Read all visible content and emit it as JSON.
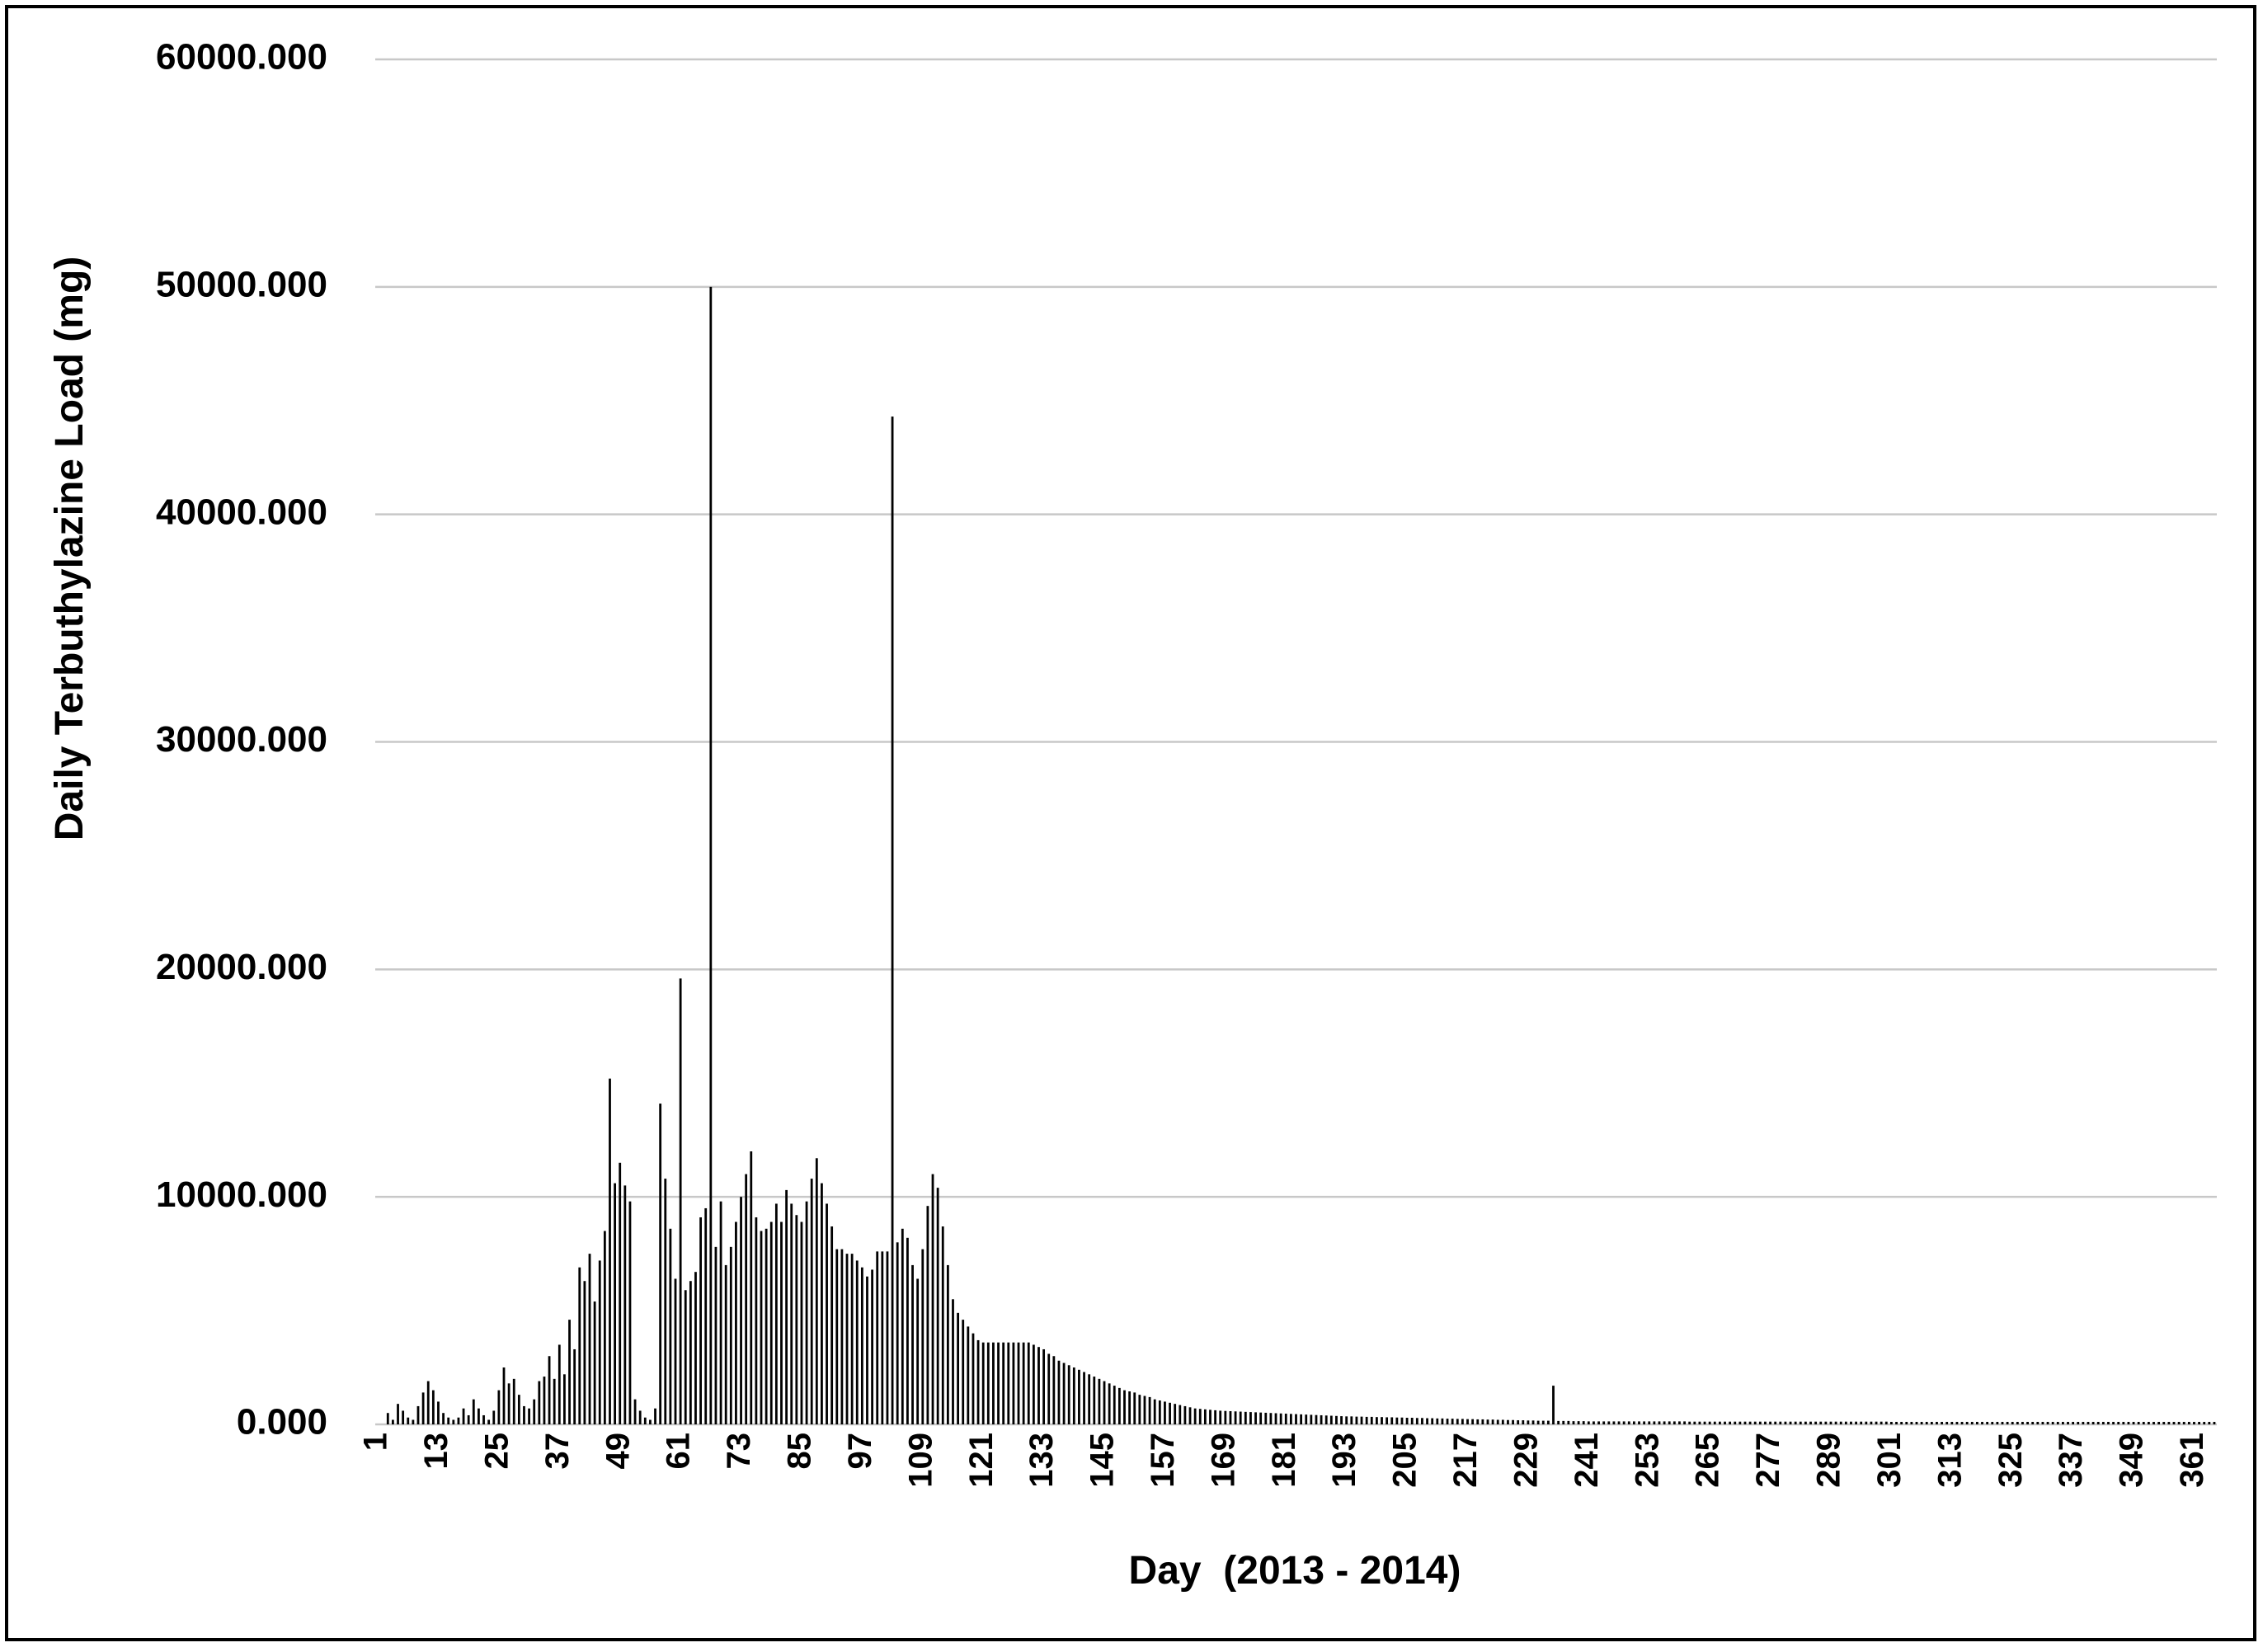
{
  "chart_data": {
    "type": "bar",
    "x_label": "Day  (2013 - 2014)",
    "y_label": "Daily Terbuthylazine Load (mg)",
    "color": "#000000",
    "grid": true,
    "ylim": [
      0,
      60000
    ],
    "yticks": [
      {
        "value": 0,
        "label": "0.000"
      },
      {
        "value": 10000,
        "label": "10000.000"
      },
      {
        "value": 20000,
        "label": "20000.000"
      },
      {
        "value": 30000,
        "label": "30000.000"
      },
      {
        "value": 40000,
        "label": "40000.000"
      },
      {
        "value": 50000,
        "label": "50000.000"
      },
      {
        "value": 60000,
        "label": "60000.000"
      }
    ],
    "categories": [
      1,
      null,
      null,
      null,
      null,
      null,
      null,
      null,
      null,
      null,
      null,
      null,
      13,
      null,
      null,
      null,
      null,
      null,
      null,
      null,
      null,
      null,
      null,
      null,
      25,
      null,
      null,
      null,
      null,
      null,
      null,
      null,
      null,
      null,
      null,
      null,
      37,
      null,
      null,
      null,
      null,
      null,
      null,
      null,
      null,
      null,
      null,
      null,
      49,
      null,
      null,
      null,
      null,
      null,
      null,
      null,
      null,
      null,
      null,
      null,
      61,
      null,
      null,
      null,
      null,
      null,
      null,
      null,
      null,
      null,
      null,
      null,
      73,
      null,
      null,
      null,
      null,
      null,
      null,
      null,
      null,
      null,
      null,
      null,
      85,
      null,
      null,
      null,
      null,
      null,
      null,
      null,
      null,
      null,
      null,
      null,
      97,
      null,
      null,
      null,
      null,
      null,
      null,
      null,
      null,
      null,
      null,
      null,
      109,
      null,
      null,
      null,
      null,
      null,
      null,
      null,
      null,
      null,
      null,
      null,
      121,
      null,
      null,
      null,
      null,
      null,
      null,
      null,
      null,
      null,
      null,
      null,
      133,
      null,
      null,
      null,
      null,
      null,
      null,
      null,
      null,
      null,
      null,
      null,
      145,
      null,
      null,
      null,
      null,
      null,
      null,
      null,
      null,
      null,
      null,
      null,
      157,
      null,
      null,
      null,
      null,
      null,
      null,
      null,
      null,
      null,
      null,
      null,
      169,
      null,
      null,
      null,
      null,
      null,
      null,
      null,
      null,
      null,
      null,
      null,
      181,
      null,
      null,
      null,
      null,
      null,
      null,
      null,
      null,
      null,
      null,
      null,
      193,
      null,
      null,
      null,
      null,
      null,
      null,
      null,
      null,
      null,
      null,
      null,
      205,
      null,
      null,
      null,
      null,
      null,
      null,
      null,
      null,
      null,
      null,
      null,
      217,
      null,
      null,
      null,
      null,
      null,
      null,
      null,
      null,
      null,
      null,
      null,
      229,
      null,
      null,
      null,
      null,
      null,
      null,
      null,
      null,
      null,
      null,
      null,
      241,
      null,
      null,
      null,
      null,
      null,
      null,
      null,
      null,
      null,
      null,
      null,
      253,
      null,
      null,
      null,
      null,
      null,
      null,
      null,
      null,
      null,
      null,
      null,
      265,
      null,
      null,
      null,
      null,
      null,
      null,
      null,
      null,
      null,
      null,
      null,
      277,
      null,
      null,
      null,
      null,
      null,
      null,
      null,
      null,
      null,
      null,
      null,
      289,
      null,
      null,
      null,
      null,
      null,
      null,
      null,
      null,
      null,
      null,
      null,
      301,
      null,
      null,
      null,
      null,
      null,
      null,
      null,
      null,
      null,
      null,
      null,
      313,
      null,
      null,
      null,
      null,
      null,
      null,
      null,
      null,
      null,
      null,
      null,
      325,
      null,
      null,
      null,
      null,
      null,
      null,
      null,
      null,
      null,
      null,
      null,
      337,
      null,
      null,
      null,
      null,
      null,
      null,
      null,
      null,
      null,
      null,
      null,
      349,
      null,
      null,
      null,
      null,
      null,
      null,
      null,
      null,
      null,
      null,
      null,
      361,
      null,
      null,
      null,
      null
    ],
    "values": [
      0,
      0,
      500,
      200,
      900,
      600,
      300,
      200,
      800,
      1400,
      1900,
      1500,
      1000,
      500,
      300,
      200,
      300,
      700,
      400,
      1100,
      700,
      400,
      200,
      600,
      1500,
      2500,
      1800,
      2000,
      1300,
      800,
      700,
      1100,
      1900,
      2100,
      3000,
      2000,
      3500,
      2200,
      4600,
      3300,
      6900,
      6300,
      7500,
      5400,
      7200,
      8500,
      15200,
      10600,
      11500,
      10500,
      9800,
      1100,
      600,
      300,
      200,
      700,
      14100,
      10800,
      8600,
      6400,
      19600,
      5900,
      6300,
      6700,
      9100,
      9500,
      50000,
      7800,
      9800,
      7000,
      7800,
      8900,
      10000,
      11000,
      12000,
      9100,
      8500,
      8600,
      8900,
      9700,
      8900,
      10300,
      9700,
      9200,
      8900,
      9800,
      10800,
      11700,
      10600,
      9700,
      8700,
      7700,
      7700,
      7500,
      7500,
      7200,
      6900,
      6500,
      6800,
      7600,
      7600,
      7600,
      44300,
      8000,
      8600,
      8200,
      7000,
      6400,
      7700,
      9600,
      11000,
      10400,
      8700,
      7000,
      5500,
      4900,
      4600,
      4300,
      4000,
      3700,
      3600,
      3600,
      3600,
      3600,
      3600,
      3600,
      3600,
      3600,
      3600,
      3600,
      3500,
      3400,
      3300,
      3100,
      3000,
      2800,
      2700,
      2600,
      2500,
      2400,
      2300,
      2200,
      2100,
      2000,
      1900,
      1800,
      1700,
      1600,
      1500,
      1450,
      1400,
      1300,
      1250,
      1200,
      1100,
      1050,
      1000,
      950,
      900,
      850,
      800,
      750,
      700,
      680,
      660,
      640,
      620,
      600,
      590,
      580,
      570,
      560,
      550,
      540,
      530,
      520,
      510,
      500,
      490,
      480,
      470,
      460,
      450,
      440,
      430,
      420,
      410,
      400,
      390,
      380,
      370,
      360,
      350,
      350,
      340,
      340,
      330,
      330,
      320,
      320,
      310,
      310,
      300,
      300,
      290,
      290,
      280,
      280,
      270,
      270,
      260,
      260,
      250,
      250,
      240,
      240,
      230,
      230,
      220,
      220,
      210,
      210,
      200,
      200,
      190,
      190,
      180,
      180,
      170,
      170,
      160,
      160,
      160,
      1700,
      150,
      150,
      150,
      140,
      140,
      140,
      130,
      130,
      130,
      130,
      130,
      130,
      130,
      130,
      130,
      130,
      130,
      130,
      130,
      130,
      130,
      130,
      130,
      130,
      130,
      130,
      120,
      120,
      120,
      120,
      120,
      120,
      120,
      120,
      120,
      120,
      120,
      120,
      120,
      120,
      120,
      120,
      120,
      120,
      120,
      120,
      120,
      120,
      120,
      120,
      120,
      120,
      120,
      120,
      120,
      120,
      120,
      120,
      120,
      120,
      120,
      120,
      120,
      120,
      120,
      120,
      110,
      110,
      110,
      110,
      110,
      110,
      110,
      110,
      110,
      110,
      110,
      110,
      110,
      110,
      110,
      110,
      110,
      110,
      110,
      110,
      110,
      110,
      110,
      110,
      110,
      110,
      110,
      110,
      110,
      110,
      110,
      110,
      110,
      110,
      110,
      110,
      110,
      110,
      110,
      110,
      110,
      110,
      110,
      110,
      110,
      110,
      110,
      110,
      110,
      110,
      110,
      110,
      110,
      110,
      110,
      110,
      110,
      110,
      110,
      110,
      110,
      110,
      110,
      110,
      110
    ]
  }
}
